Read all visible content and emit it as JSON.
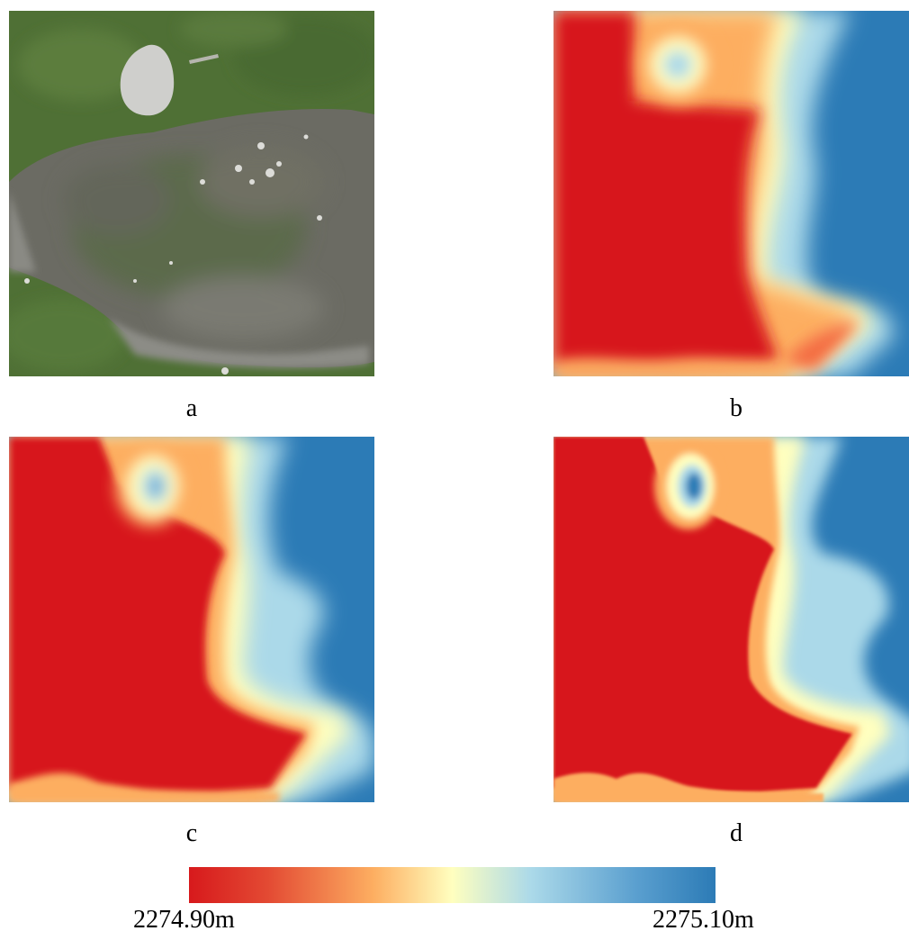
{
  "panels": [
    {
      "id": "a",
      "caption": "a",
      "kind": "orthophoto"
    },
    {
      "id": "b",
      "caption": "b",
      "kind": "elevation-map"
    },
    {
      "id": "c",
      "caption": "c",
      "kind": "elevation-map"
    },
    {
      "id": "d",
      "caption": "d",
      "kind": "elevation-map"
    }
  ],
  "colorbar": {
    "min_label": "2274.90m",
    "max_label": "2275.10m",
    "colors": [
      "#d7191c",
      "#fdae61",
      "#ffffbf",
      "#abd9e9",
      "#2c7bb6"
    ]
  }
}
